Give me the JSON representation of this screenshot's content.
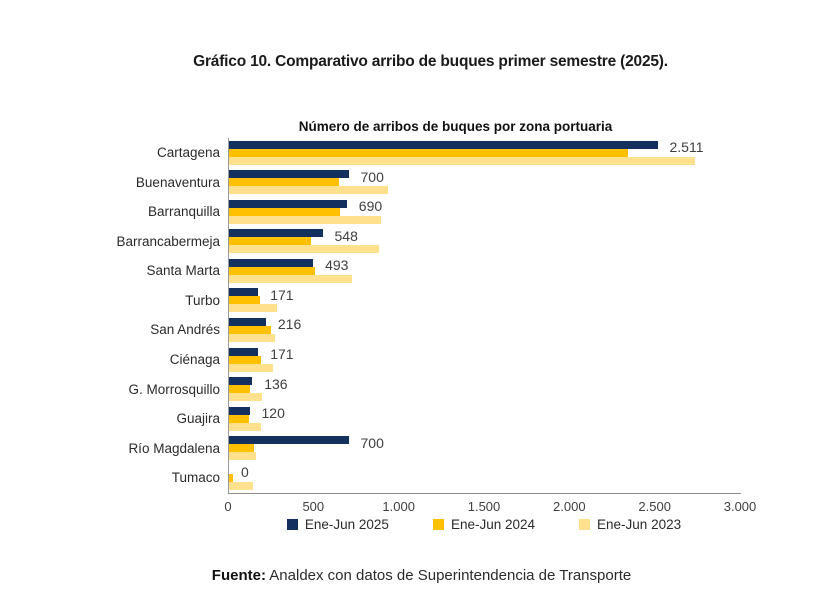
{
  "header": {
    "title": "Gráfico 10. Comparativo arribo de buques primer semestre (2025)."
  },
  "footer": {
    "source_label": "Fuente:",
    "source_text": " Analdex con datos de Superintendencia de Transporte"
  },
  "chart_data": {
    "type": "bar",
    "orientation": "horizontal",
    "title": "Número de arribos de buques por zona portuaria",
    "categories": [
      "Cartagena",
      "Buenaventura",
      "Barranquilla",
      "Barrancabermeja",
      "Santa Marta",
      "Turbo",
      "San Andrés",
      "Ciénaga",
      "G. Morrosquillo",
      "Guajira",
      "Río Magdalena",
      "Tumaco"
    ],
    "series": [
      {
        "name": "Ene-Jun 2025",
        "color": "#13305f",
        "values": [
          2511,
          700,
          690,
          548,
          493,
          171,
          216,
          171,
          136,
          120,
          700,
          0
        ],
        "labels": [
          "2.511",
          "700",
          "690",
          "548",
          "493",
          "171",
          "216",
          "171",
          "136",
          "120",
          "700",
          "0"
        ]
      },
      {
        "name": "Ene-Jun 2024",
        "color": "#ffc000",
        "values": [
          2340,
          645,
          650,
          480,
          505,
          180,
          245,
          185,
          120,
          115,
          145,
          25
        ]
      },
      {
        "name": "Ene-Jun 2023",
        "color": "#ffe18d",
        "values": [
          2730,
          930,
          890,
          880,
          720,
          280,
          270,
          260,
          195,
          190,
          155,
          140
        ]
      }
    ],
    "xlabel": "",
    "ylabel": "",
    "xlim": [
      0,
      3000
    ],
    "xticks": [
      0,
      500,
      1000,
      1500,
      2000,
      2500,
      3000
    ],
    "xtick_labels": [
      "0",
      "500",
      "1.000",
      "1.500",
      "2.000",
      "2.500",
      "3.000"
    ],
    "grid": false,
    "legend_position": "bottom",
    "value_labels_on_series": "Ene-Jun 2025",
    "axis_color": "#8c8c8c"
  }
}
